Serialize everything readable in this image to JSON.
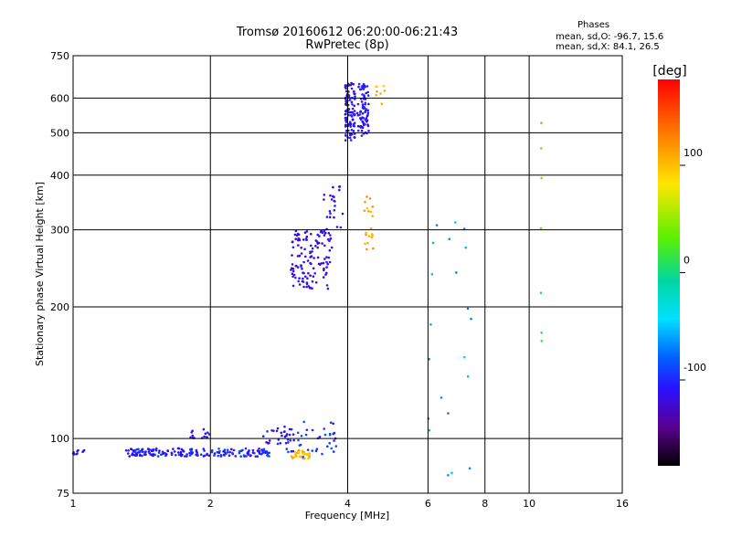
{
  "chart_data": {
    "type": "scatter",
    "title": "Tromsø 20160612 06:20:00-06:21:43",
    "subtitle": "RwPretec (8p)",
    "xlabel": "Frequency [MHz]",
    "ylabel": "Stationary phase Virtual Height [km]",
    "x_scale": "log",
    "y_scale": "log",
    "xlim": [
      1,
      16
    ],
    "ylim": [
      75,
      750
    ],
    "x_ticks": [
      1,
      2,
      4,
      6,
      8,
      10,
      16
    ],
    "x_tick_labels": [
      "1",
      "2",
      "4",
      "6",
      "8",
      "10",
      "16"
    ],
    "y_ticks": [
      75,
      100,
      200,
      300,
      400,
      500,
      600,
      750
    ],
    "y_tick_labels": [
      "75",
      "100",
      "200",
      "300",
      "400",
      "500",
      "600",
      "750"
    ],
    "grid": true,
    "phases_title": "Phases",
    "phases_lines": [
      "mean, sd,O: -96.7, 15.6",
      "mean, sd,X:  84.1, 26.5"
    ],
    "colorbar": {
      "label": "[deg]",
      "range": [
        -180,
        180
      ],
      "ticks": [
        100,
        0,
        -100
      ],
      "tick_labels": [
        "100",
        "0",
        "-100"
      ]
    },
    "point_clusters": [
      {
        "x_range": [
          1.0,
          1.06
        ],
        "y_range": [
          92,
          94
        ],
        "phase": -110,
        "count": 10
      },
      {
        "x_range": [
          1.3,
          1.95
        ],
        "y_range": [
          91,
          95
        ],
        "phase": -105,
        "count": 110
      },
      {
        "x_range": [
          1.8,
          2.0
        ],
        "y_range": [
          100,
          105
        ],
        "phase": -110,
        "count": 14
      },
      {
        "x_range": [
          1.95,
          2.7
        ],
        "y_range": [
          91,
          95
        ],
        "phase": -100,
        "count": 80
      },
      {
        "x_range": [
          2.6,
          3.0
        ],
        "y_range": [
          97,
          106
        ],
        "phase": -110,
        "count": 26
      },
      {
        "x_range": [
          3.0,
          3.3
        ],
        "y_range": [
          90,
          94
        ],
        "phase": 105,
        "count": 32
      },
      {
        "x_range": [
          2.9,
          3.8
        ],
        "y_range": [
          90,
          110
        ],
        "phase": -95,
        "count": 40
      },
      {
        "x_range": [
          3.0,
          3.7
        ],
        "y_range": [
          220,
          300
        ],
        "phase": -115,
        "count": 120
      },
      {
        "x_range": [
          3.5,
          3.9
        ],
        "y_range": [
          290,
          380
        ],
        "phase": -110,
        "count": 30
      },
      {
        "x_range": [
          3.95,
          4.15
        ],
        "y_range": [
          480,
          650
        ],
        "phase": -110,
        "count": 110
      },
      {
        "x_range": [
          4.2,
          4.45
        ],
        "y_range": [
          490,
          650
        ],
        "phase": -110,
        "count": 80
      },
      {
        "x_range": [
          4.35,
          4.55
        ],
        "y_range": [
          260,
          360
        ],
        "phase": 110,
        "count": 20
      },
      {
        "x_range": [
          4.6,
          4.85
        ],
        "y_range": [
          580,
          640
        ],
        "phase": 105,
        "count": 8
      },
      {
        "x_range": [
          6.0,
          7.5
        ],
        "y_range": [
          80,
          340
        ],
        "phase": -60,
        "count": 22
      },
      {
        "x_range": [
          10.6,
          10.8
        ],
        "y_range": [
          160,
          570
        ],
        "phase": 20,
        "count": 7
      }
    ]
  }
}
